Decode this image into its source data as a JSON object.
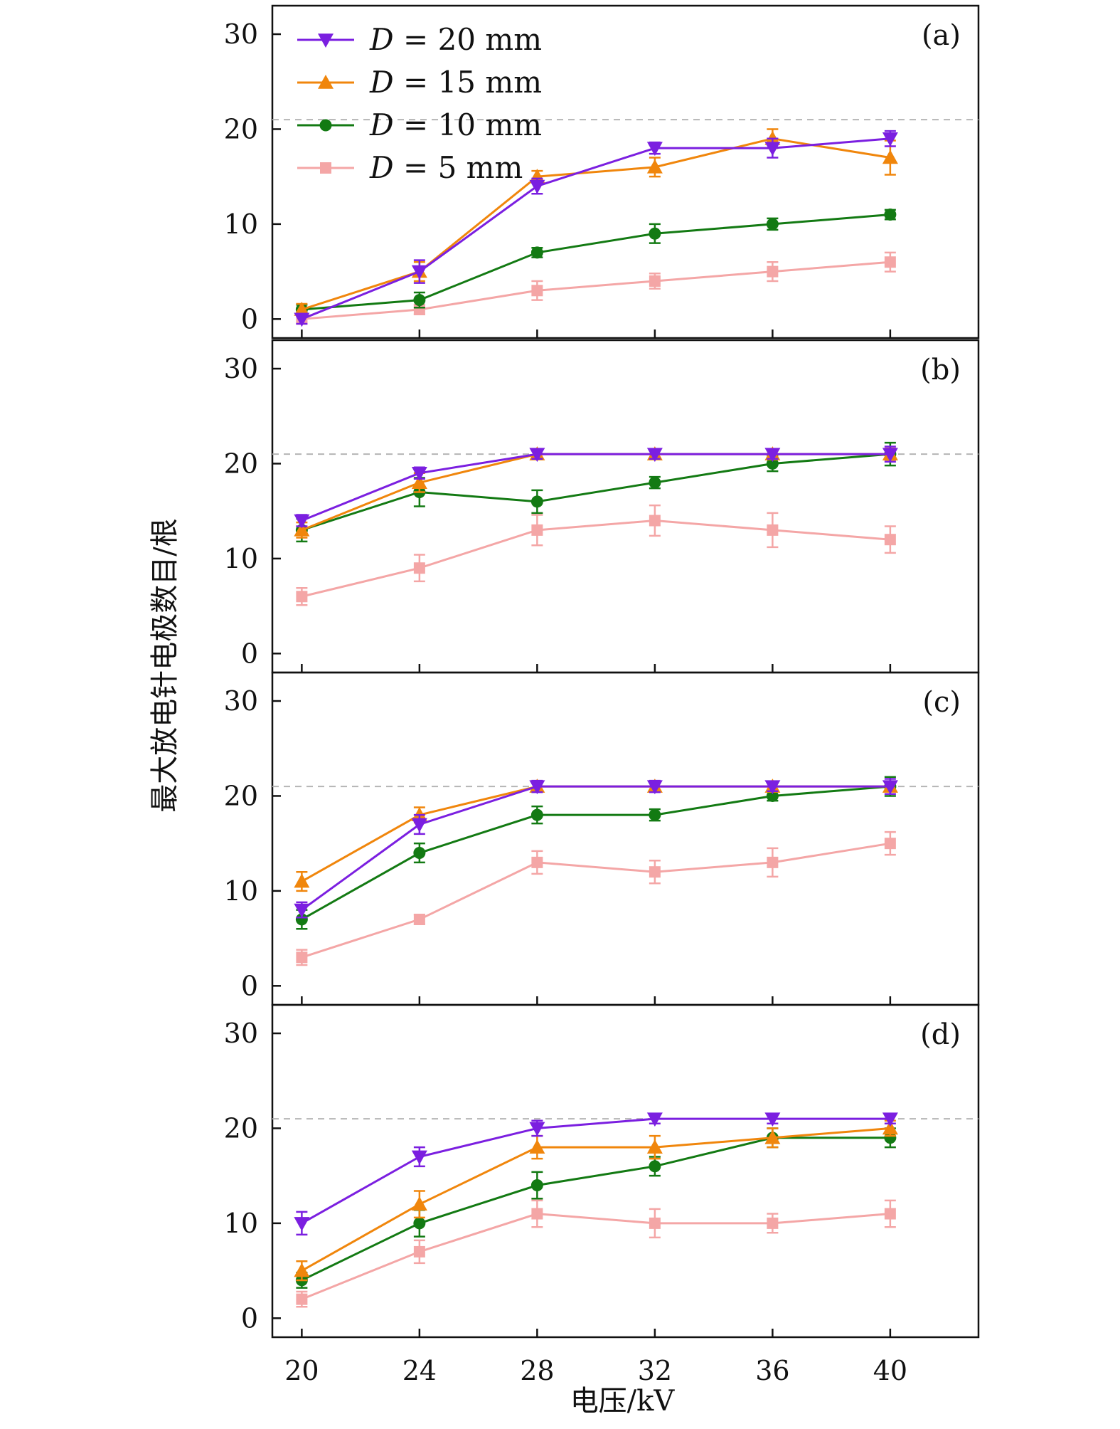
{
  "chart_data": {
    "type": "line",
    "xlabel": "电压/kV",
    "ylabel": "最大放电针电极数目/根",
    "x": [
      20,
      24,
      28,
      32,
      36,
      40
    ],
    "xlim": [
      19,
      43
    ],
    "ylim": [
      -2,
      33
    ],
    "yticks": [
      0,
      10,
      20,
      30
    ],
    "reference_line": 21,
    "legend": {
      "placement": "top-left of panel (a)",
      "entries": [
        {
          "var": "D",
          "eq": "=",
          "value": "20",
          "unit": "mm"
        },
        {
          "var": "D",
          "eq": "=",
          "value": "15",
          "unit": "mm"
        },
        {
          "var": "D",
          "eq": "=",
          "value": "10",
          "unit": "mm"
        },
        {
          "var": "D",
          "eq": "=",
          "value": "5",
          "unit": "mm"
        }
      ]
    },
    "series_styles": [
      {
        "name": "D = 20 mm",
        "color": "#7b1fe0",
        "marker": "triangle-down"
      },
      {
        "name": "D = 15 mm",
        "color": "#f0860c",
        "marker": "triangle-up"
      },
      {
        "name": "D = 10 mm",
        "color": "#137a13",
        "marker": "circle"
      },
      {
        "name": "D = 5 mm",
        "color": "#f4a6a6",
        "marker": "square"
      }
    ],
    "panels": [
      {
        "label": "(a)",
        "series": [
          {
            "name": "D = 20 mm",
            "values": [
              0,
              5,
              14,
              18,
              18,
              19
            ],
            "errors": [
              0.5,
              1.2,
              0.8,
              0.6,
              1.0,
              0.8
            ]
          },
          {
            "name": "D = 15 mm",
            "values": [
              1,
              5,
              15,
              16,
              19,
              17
            ],
            "errors": [
              0.6,
              1.0,
              0.6,
              1.0,
              1.0,
              1.8
            ]
          },
          {
            "name": "D = 10 mm",
            "values": [
              1,
              2,
              7,
              9,
              10,
              11
            ],
            "errors": [
              0.5,
              0.8,
              0.5,
              1.0,
              0.6,
              0.5
            ]
          },
          {
            "name": "D = 5 mm",
            "values": [
              0,
              1,
              3,
              4,
              5,
              6
            ],
            "errors": [
              0.3,
              0.5,
              1.0,
              0.8,
              1.0,
              1.0
            ]
          }
        ]
      },
      {
        "label": "(b)",
        "series": [
          {
            "name": "D = 20 mm",
            "values": [
              14,
              19,
              21,
              21,
              21,
              21
            ],
            "errors": [
              0.6,
              0.6,
              0.5,
              0.5,
              0.5,
              0.8
            ]
          },
          {
            "name": "D = 15 mm",
            "values": [
              13,
              18,
              21,
              21,
              21,
              21
            ],
            "errors": [
              0.8,
              1.0,
              0.5,
              0.5,
              0.5,
              0.6
            ]
          },
          {
            "name": "D = 10 mm",
            "values": [
              13,
              17,
              16,
              18,
              20,
              21
            ],
            "errors": [
              1.2,
              1.5,
              1.2,
              0.6,
              0.8,
              1.2
            ]
          },
          {
            "name": "D = 5 mm",
            "values": [
              6,
              9,
              13,
              14,
              13,
              12
            ],
            "errors": [
              0.9,
              1.4,
              1.6,
              1.6,
              1.8,
              1.4
            ]
          }
        ]
      },
      {
        "label": "(c)",
        "series": [
          {
            "name": "D = 20 mm",
            "values": [
              8,
              17,
              21,
              21,
              21,
              21
            ],
            "errors": [
              0.8,
              1.0,
              0.6,
              0.6,
              0.5,
              0.8
            ]
          },
          {
            "name": "D = 15 mm",
            "values": [
              11,
              18,
              21,
              21,
              21,
              21
            ],
            "errors": [
              1.0,
              0.8,
              0.5,
              0.5,
              0.5,
              0.5
            ]
          },
          {
            "name": "D = 10 mm",
            "values": [
              7,
              14,
              18,
              18,
              20,
              21
            ],
            "errors": [
              1.0,
              1.0,
              0.9,
              0.6,
              0.5,
              1.0
            ]
          },
          {
            "name": "D = 5 mm",
            "values": [
              3,
              7,
              13,
              12,
              13,
              15
            ],
            "errors": [
              0.8,
              0.5,
              1.2,
              1.2,
              1.5,
              1.2
            ]
          }
        ]
      },
      {
        "label": "(d)",
        "series": [
          {
            "name": "D = 20 mm",
            "values": [
              10,
              17,
              20,
              21,
              21,
              21
            ],
            "errors": [
              1.2,
              1.0,
              0.8,
              0.5,
              0.5,
              0.5
            ]
          },
          {
            "name": "D = 15 mm",
            "values": [
              5,
              12,
              18,
              18,
              19,
              20
            ],
            "errors": [
              1.0,
              1.4,
              1.2,
              1.2,
              1.0,
              0.8
            ]
          },
          {
            "name": "D = 10 mm",
            "values": [
              4,
              10,
              14,
              16,
              19,
              19
            ],
            "errors": [
              0.8,
              1.4,
              1.4,
              1.0,
              1.0,
              1.0
            ]
          },
          {
            "name": "D = 5 mm",
            "values": [
              2,
              7,
              11,
              10,
              10,
              11
            ],
            "errors": [
              0.8,
              1.2,
              1.4,
              1.5,
              1.0,
              1.4
            ]
          }
        ]
      }
    ]
  }
}
